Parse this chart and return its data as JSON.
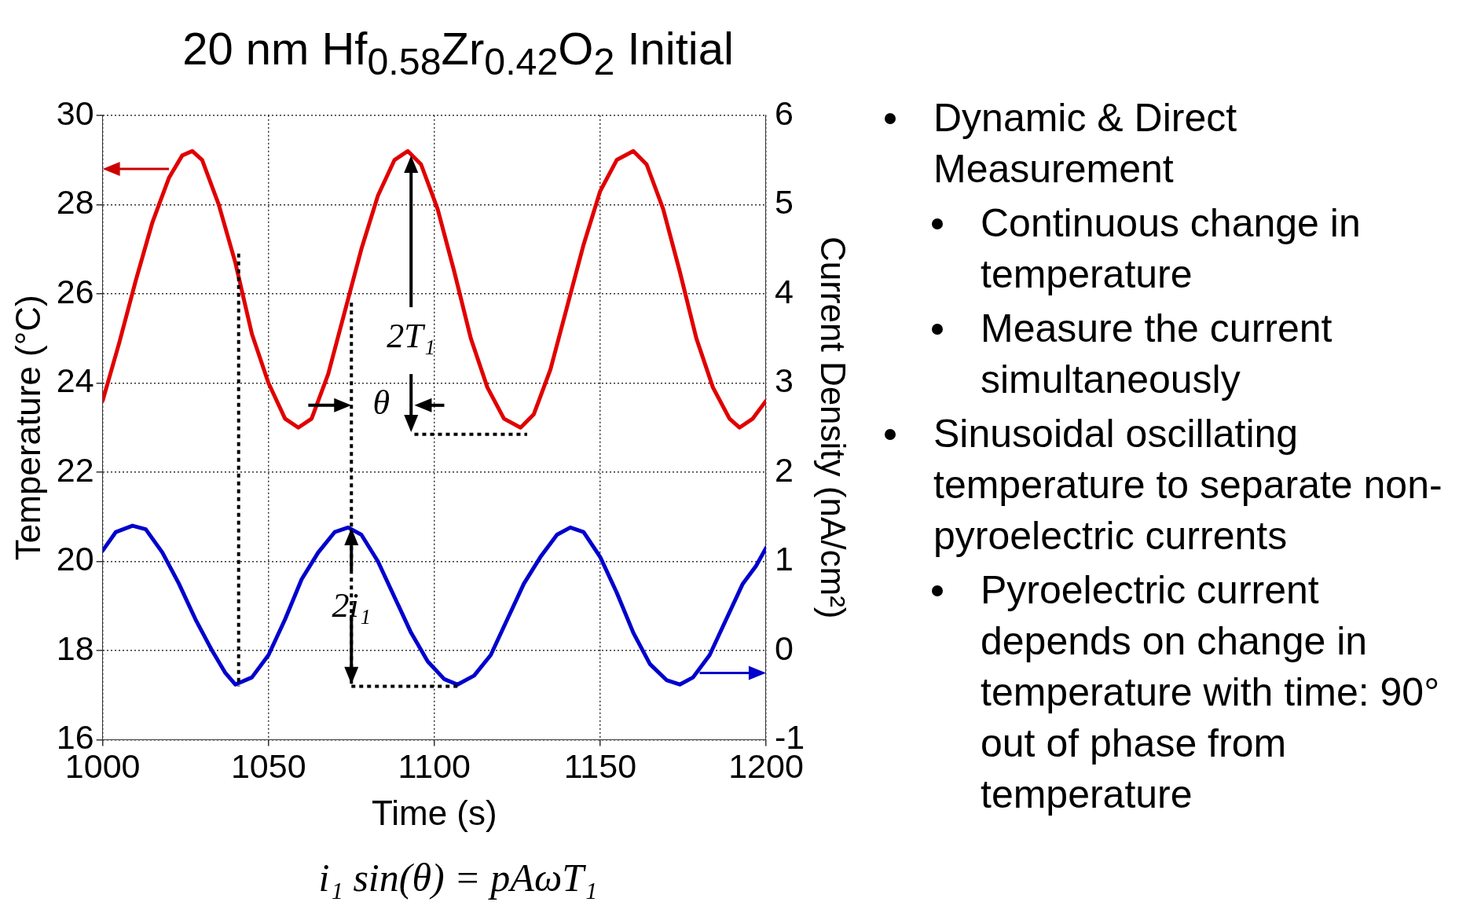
{
  "chart_data": {
    "type": "line",
    "title": "20 nm Hf$_{0.58}$Zr$_{0.42}$O$_{2}$ Initial",
    "xlabel": "Time (s)",
    "ylabel": "Temperature (°C)",
    "y2label": "Current Density (nA/cm²)",
    "series": [
      {
        "color": "#e00000",
        "x": [
          1000,
          1005,
          1010,
          1015,
          1020,
          1024,
          1027,
          1030,
          1035,
          1040,
          1045,
          1050,
          1055,
          1059,
          1063,
          1068,
          1073,
          1078,
          1083,
          1088,
          1092,
          1096,
          1101,
          1106,
          1111,
          1116,
          1121,
          1126,
          1130,
          1135,
          1140,
          1145,
          1150,
          1155,
          1160,
          1164,
          1169,
          1174,
          1179,
          1184,
          1189,
          1192,
          1196,
          1200
        ],
        "values": [
          23.6,
          24.9,
          26.3,
          27.6,
          28.6,
          29.1,
          29.2,
          29.0,
          28.0,
          26.7,
          25.1,
          24.0,
          23.2,
          23.0,
          23.2,
          24.2,
          25.6,
          27.0,
          28.2,
          29.0,
          29.2,
          28.9,
          27.9,
          26.5,
          25.0,
          23.9,
          23.2,
          23.0,
          23.3,
          24.3,
          25.7,
          27.1,
          28.3,
          29.0,
          29.2,
          28.9,
          27.9,
          26.5,
          25.0,
          23.9,
          23.2,
          23.0,
          23.2,
          23.6
        ]
      },
      {
        "color": "#0000cc",
        "axis": "y2",
        "x": [
          1000,
          1004,
          1009,
          1013,
          1018,
          1023,
          1028,
          1033,
          1037,
          1040,
          1045,
          1050,
          1055,
          1060,
          1065,
          1070,
          1074,
          1078,
          1083,
          1088,
          1093,
          1098,
          1103,
          1107,
          1112,
          1117,
          1122,
          1127,
          1132,
          1137,
          1141,
          1145,
          1150,
          1155,
          1160,
          1165,
          1170,
          1174,
          1178,
          1183,
          1188,
          1193,
          1197,
          1200
        ],
        "values": [
          1.12,
          1.33,
          1.4,
          1.36,
          1.1,
          0.75,
          0.35,
          0.0,
          -0.25,
          -0.38,
          -0.3,
          -0.05,
          0.35,
          0.8,
          1.1,
          1.33,
          1.38,
          1.3,
          1.0,
          0.6,
          0.2,
          -0.12,
          -0.32,
          -0.38,
          -0.28,
          -0.05,
          0.35,
          0.75,
          1.05,
          1.3,
          1.38,
          1.33,
          1.05,
          0.65,
          0.2,
          -0.15,
          -0.33,
          -0.38,
          -0.3,
          -0.05,
          0.35,
          0.75,
          0.95,
          1.15
        ]
      }
    ],
    "xlim": [
      1000,
      1200
    ],
    "xticks": [
      1000,
      1050,
      1100,
      1150,
      1200
    ],
    "ylim": [
      16,
      30
    ],
    "yticks": [
      16,
      18,
      20,
      22,
      24,
      26,
      28,
      30
    ],
    "y2lim": [
      -1,
      6
    ],
    "y2ticks": [
      -1,
      0,
      1,
      2,
      3,
      4,
      5,
      6
    ],
    "ref_lines": [
      {
        "axis": "x",
        "value": 1041,
        "color": "#000000",
        "line_style": "dotted"
      },
      {
        "axis": "x",
        "value": 1075,
        "color": "#000000",
        "line_style": "dotted"
      },
      {
        "axis": "y",
        "value": 22.85,
        "color": "#000000",
        "line_style": "dotted"
      },
      {
        "axis": "y",
        "value": 17.2,
        "color": "#000000",
        "line_style": "dotted"
      }
    ],
    "grid": true,
    "legend": false,
    "marker": "none",
    "line_style": "solid",
    "annotations": [
      "2T₁",
      "θ",
      {
        "text": "2i₁",
        "x": 1075,
        "y": 17.2
      },
      "i₁ sin(θ) = pAωT₁",
      "Dynamic & Direct Measurement",
      "Continuous change in temperature",
      "Measure the current simultaneously",
      "Sinusoidal oscillating temperature to separate non-pyroelectric currents",
      "Pyroelectric current depends on change in temperature with time: 90° out of phase from temperature"
    ]
  }
}
